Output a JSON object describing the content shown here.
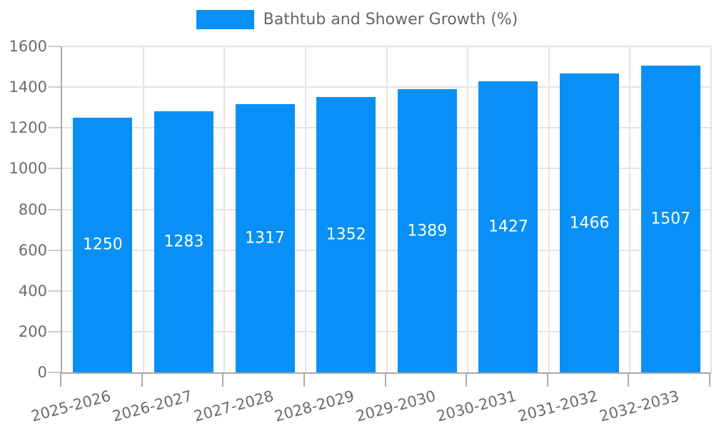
{
  "chart_data": {
    "type": "bar",
    "title": "",
    "legend": {
      "label": "Bathtub and Shower Growth (%)",
      "position": "top"
    },
    "categories": [
      "2025-2026",
      "2026-2027",
      "2027-2028",
      "2028-2029",
      "2029-2030",
      "2030-2031",
      "2031-2032",
      "2032-2033"
    ],
    "values": [
      1250,
      1283,
      1317,
      1352,
      1389,
      1427,
      1466,
      1507
    ],
    "value_labels_position": "inside-middle",
    "xlabel": "",
    "ylabel": "",
    "ylim": [
      0,
      1600
    ],
    "yticks": [
      0,
      200,
      400,
      600,
      800,
      1000,
      1200,
      1400,
      1600
    ],
    "grid": true,
    "x_tick_rotation_deg": -15,
    "colors": {
      "bar": "#0890f6",
      "grid": "#e4e4e4",
      "axis": "#a8a8a8",
      "y_tick_mark": "#cccccc",
      "x_tick_mark": "#ababab",
      "tick_label": "#6b6b6b",
      "legend_label": "#666666",
      "value_label": "#ffffff"
    }
  }
}
